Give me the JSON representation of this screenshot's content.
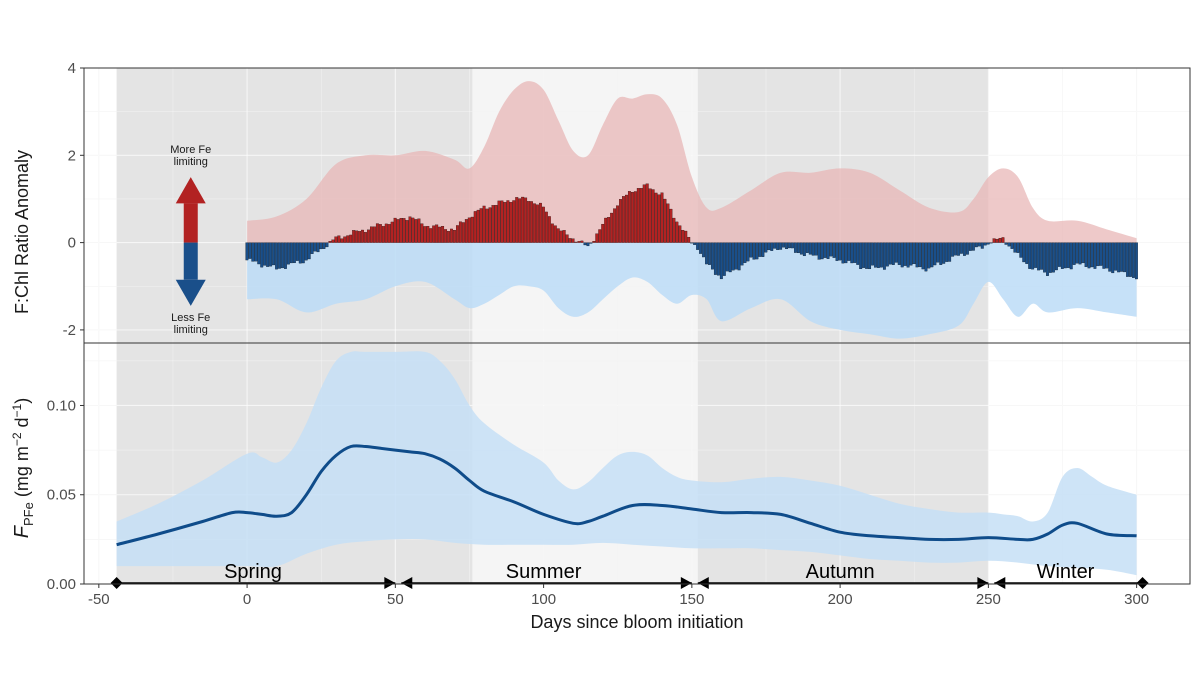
{
  "chart_data": [
    {
      "type": "bar",
      "panel": "top",
      "ylabel": "F:Chl Ratio Anomaly",
      "xlim": [
        -55,
        318
      ],
      "ylim": [
        -2.3,
        4
      ],
      "yticks": [
        -2,
        0,
        2,
        4
      ],
      "yticklabels": [
        "-2",
        "0",
        "2",
        "4"
      ],
      "colors": {
        "positive": "#b22222",
        "negative": "#1a4f8a",
        "positive_band": "#e8b4b4",
        "negative_band": "#bcdcf7"
      },
      "annotations": {
        "up_arrow": [
          "More Fe",
          "limiting"
        ],
        "down_arrow": [
          "Less Fe",
          "limiting"
        ]
      },
      "band_upper": {
        "x": [
          0,
          10,
          20,
          30,
          40,
          50,
          60,
          70,
          75,
          80,
          85,
          90,
          95,
          100,
          105,
          110,
          115,
          120,
          125,
          130,
          135,
          140,
          145,
          150,
          155,
          160,
          170,
          180,
          190,
          200,
          210,
          220,
          230,
          240,
          245,
          250,
          255,
          260,
          265,
          270,
          280,
          290,
          300
        ],
        "values": [
          0.5,
          0.6,
          1.0,
          1.8,
          2.0,
          2.0,
          2.1,
          1.9,
          1.7,
          2.2,
          3.0,
          3.5,
          3.7,
          3.5,
          2.8,
          2.1,
          2.0,
          2.7,
          3.3,
          3.3,
          3.4,
          3.3,
          2.7,
          1.5,
          0.8,
          0.8,
          1.2,
          1.6,
          1.6,
          1.7,
          1.6,
          1.2,
          0.8,
          0.7,
          1.0,
          1.5,
          1.7,
          1.5,
          0.8,
          0.5,
          0.5,
          0.3,
          0.1
        ]
      },
      "band_lower": {
        "x": [
          0,
          10,
          20,
          30,
          40,
          50,
          60,
          70,
          75,
          80,
          85,
          90,
          95,
          100,
          105,
          110,
          115,
          120,
          125,
          130,
          135,
          140,
          145,
          150,
          155,
          160,
          170,
          180,
          190,
          200,
          210,
          220,
          230,
          240,
          245,
          250,
          255,
          260,
          265,
          270,
          280,
          290,
          300
        ],
        "values": [
          -1.3,
          -1.3,
          -1.6,
          -1.4,
          -1.3,
          -1.0,
          -0.9,
          -1.3,
          -1.5,
          -1.4,
          -1.2,
          -1.0,
          -1.0,
          -1.1,
          -1.5,
          -1.7,
          -1.6,
          -1.3,
          -1.0,
          -0.8,
          -0.9,
          -1.2,
          -1.4,
          -1.2,
          -1.3,
          -1.8,
          -1.5,
          -1.3,
          -1.8,
          -2.0,
          -2.1,
          -2.2,
          -2.1,
          -1.9,
          -1.4,
          -0.9,
          -1.3,
          -1.7,
          -1.4,
          -1.6,
          -1.5,
          -1.6,
          -1.7
        ]
      },
      "anomaly": {
        "x": [
          0,
          10,
          20,
          30,
          35,
          40,
          50,
          55,
          60,
          70,
          75,
          80,
          85,
          90,
          95,
          100,
          105,
          110,
          115,
          120,
          125,
          130,
          135,
          140,
          145,
          150,
          152,
          155,
          160,
          170,
          180,
          190,
          200,
          210,
          220,
          230,
          240,
          248,
          250,
          255,
          260,
          265,
          270,
          280,
          290,
          300
        ],
        "values": [
          -0.4,
          -0.6,
          -0.4,
          0.1,
          0.2,
          0.3,
          0.5,
          0.6,
          0.4,
          0.3,
          0.6,
          0.8,
          0.9,
          1.0,
          1.0,
          0.8,
          0.3,
          0.1,
          -0.1,
          0.4,
          0.9,
          1.2,
          1.3,
          1.1,
          0.5,
          0.0,
          -0.1,
          -0.5,
          -0.8,
          -0.4,
          -0.1,
          -0.3,
          -0.4,
          -0.6,
          -0.5,
          -0.6,
          -0.3,
          -0.1,
          0.0,
          0.1,
          -0.3,
          -0.6,
          -0.7,
          -0.5,
          -0.6,
          -0.8
        ]
      }
    },
    {
      "type": "line",
      "panel": "bottom",
      "xlabel": "Days since bloom initiation",
      "ylabel_parts": {
        "main": "F",
        "sub": "PFe",
        "units": " (mg m",
        "exp1": "−2",
        "mid": " d",
        "exp2": "−1",
        "close": ")"
      },
      "xlim": [
        -55,
        318
      ],
      "ylim": [
        0,
        0.135
      ],
      "xticks": [
        -50,
        0,
        50,
        100,
        150,
        200,
        250,
        300
      ],
      "xticklabels": [
        "-50",
        "0",
        "50",
        "100",
        "150",
        "200",
        "250",
        "300"
      ],
      "yticks": [
        0,
        0.05,
        0.1
      ],
      "yticklabels": [
        "0.00",
        "0.05",
        "0.10"
      ],
      "colors": {
        "line": "#0f4c8a",
        "band": "#c6dff6"
      },
      "band_upper": {
        "x": [
          -44,
          -30,
          -15,
          0,
          5,
          10,
          15,
          20,
          25,
          30,
          35,
          40,
          50,
          60,
          65,
          70,
          75,
          80,
          90,
          100,
          105,
          110,
          115,
          120,
          125,
          130,
          135,
          140,
          145,
          150,
          160,
          170,
          180,
          190,
          200,
          210,
          220,
          230,
          240,
          250,
          255,
          260,
          265,
          270,
          275,
          280,
          285,
          290,
          300
        ],
        "values": [
          0.035,
          0.045,
          0.058,
          0.073,
          0.071,
          0.068,
          0.075,
          0.09,
          0.11,
          0.125,
          0.13,
          0.13,
          0.13,
          0.13,
          0.125,
          0.115,
          0.1,
          0.09,
          0.078,
          0.068,
          0.058,
          0.053,
          0.057,
          0.065,
          0.072,
          0.074,
          0.072,
          0.065,
          0.06,
          0.058,
          0.057,
          0.059,
          0.06,
          0.058,
          0.055,
          0.05,
          0.045,
          0.042,
          0.04,
          0.04,
          0.039,
          0.038,
          0.035,
          0.04,
          0.06,
          0.065,
          0.06,
          0.055,
          0.05
        ]
      },
      "band_lower": {
        "x": [
          -44,
          -30,
          -15,
          0,
          10,
          20,
          30,
          40,
          50,
          60,
          70,
          80,
          90,
          100,
          110,
          120,
          130,
          140,
          150,
          160,
          170,
          180,
          190,
          200,
          210,
          220,
          230,
          240,
          250,
          260,
          270,
          280,
          290,
          300
        ],
        "values": [
          0.01,
          0.01,
          0.01,
          0.01,
          0.01,
          0.017,
          0.022,
          0.024,
          0.025,
          0.025,
          0.023,
          0.022,
          0.022,
          0.022,
          0.022,
          0.023,
          0.022,
          0.021,
          0.02,
          0.02,
          0.02,
          0.019,
          0.018,
          0.016,
          0.014,
          0.013,
          0.012,
          0.012,
          0.013,
          0.012,
          0.01,
          0.009,
          0.008,
          0.005
        ]
      },
      "mean": {
        "x": [
          -44,
          -30,
          -15,
          -5,
          0,
          5,
          10,
          15,
          20,
          25,
          30,
          35,
          40,
          45,
          50,
          55,
          60,
          65,
          70,
          75,
          80,
          90,
          100,
          110,
          115,
          120,
          130,
          140,
          150,
          160,
          170,
          180,
          190,
          200,
          210,
          220,
          230,
          240,
          250,
          260,
          265,
          270,
          275,
          280,
          290,
          300
        ],
        "values": [
          0.022,
          0.028,
          0.035,
          0.04,
          0.04,
          0.039,
          0.038,
          0.04,
          0.05,
          0.063,
          0.072,
          0.077,
          0.077,
          0.076,
          0.075,
          0.074,
          0.073,
          0.07,
          0.065,
          0.058,
          0.052,
          0.046,
          0.039,
          0.034,
          0.035,
          0.038,
          0.044,
          0.044,
          0.042,
          0.04,
          0.04,
          0.039,
          0.034,
          0.029,
          0.027,
          0.026,
          0.025,
          0.025,
          0.026,
          0.025,
          0.025,
          0.028,
          0.033,
          0.034,
          0.028,
          0.027
        ]
      },
      "seasons": [
        {
          "label": "Spring",
          "start": -44,
          "end": 50,
          "text_x": 2,
          "shaded": true
        },
        {
          "label": "Summer",
          "start": 52,
          "end": 150,
          "text_x": 100,
          "shaded": false
        },
        {
          "label": "Autumn",
          "start": 152,
          "end": 250,
          "text_x": 200,
          "shaded": true
        },
        {
          "label": "Winter",
          "start": 252,
          "end": 302,
          "text_x": 276,
          "shaded": false
        }
      ],
      "shading": [
        {
          "start": -44,
          "end": 76,
          "fill": "#e4e4e4"
        },
        {
          "start": 76,
          "end": 152,
          "fill": "#f5f5f5"
        },
        {
          "start": 152,
          "end": 250,
          "fill": "#e4e4e4"
        }
      ]
    }
  ]
}
